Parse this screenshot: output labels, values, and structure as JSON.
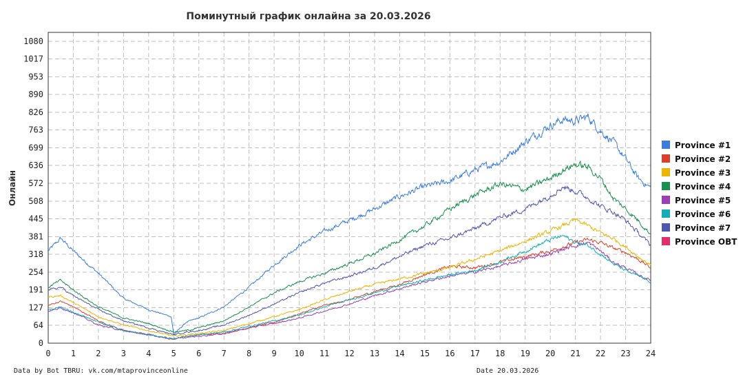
{
  "chart_data": {
    "type": "line",
    "title": "Поминутный график онлайна за 20.03.2026",
    "xlabel": "",
    "ylabel": "Онлайн",
    "xlim": [
      0,
      24
    ],
    "ylim": [
      0,
      1080
    ],
    "x_ticks": [
      "0",
      "1",
      "2",
      "3",
      "4",
      "5",
      "6",
      "7",
      "8",
      "9",
      "10",
      "11",
      "12",
      "13",
      "14",
      "15",
      "16",
      "17",
      "18",
      "19",
      "20",
      "21",
      "22",
      "23",
      "24"
    ],
    "y_ticks": [
      0,
      64,
      127,
      191,
      254,
      318,
      381,
      445,
      508,
      572,
      636,
      699,
      763,
      826,
      890,
      953,
      1017,
      1080
    ],
    "grid": true,
    "legend_position": "right",
    "series": [
      {
        "name": "Province #1",
        "color": "#3b7ddd",
        "x": [
          0,
          0.5,
          1,
          2,
          3,
          4,
          4.9,
          5,
          5.5,
          6,
          7,
          8,
          9,
          10,
          11,
          12,
          13,
          14,
          15,
          16,
          17,
          18,
          19,
          20,
          20.5,
          21,
          21.5,
          22,
          22.5,
          23,
          23.5,
          24
        ],
        "y": [
          330,
          375,
          330,
          250,
          160,
          120,
          95,
          30,
          75,
          90,
          130,
          200,
          280,
          350,
          400,
          440,
          480,
          525,
          560,
          580,
          620,
          650,
          720,
          780,
          800,
          795,
          810,
          760,
          720,
          660,
          590,
          555
        ]
      },
      {
        "name": "Province #2",
        "color": "#d9412a",
        "x": [
          0,
          0.5,
          1,
          2,
          3,
          4,
          5,
          5.5,
          6,
          7,
          8,
          9,
          10,
          11,
          12,
          13,
          14,
          15,
          16,
          17,
          18,
          19,
          20,
          21,
          21.5,
          22,
          22.5,
          23,
          23.5,
          24
        ],
        "y": [
          135,
          150,
          130,
          80,
          45,
          30,
          15,
          25,
          30,
          35,
          55,
          75,
          105,
          135,
          155,
          185,
          210,
          245,
          275,
          270,
          290,
          310,
          330,
          360,
          370,
          360,
          340,
          325,
          300,
          270
        ]
      },
      {
        "name": "Province #3",
        "color": "#f0b400",
        "x": [
          0,
          0.5,
          1,
          2,
          3,
          4,
          5,
          5.5,
          6,
          7,
          8,
          9,
          10,
          11,
          12,
          13,
          14,
          15,
          16,
          17,
          18,
          19,
          20,
          20.5,
          21,
          21.5,
          22,
          22.5,
          23,
          23.5,
          24
        ],
        "y": [
          165,
          170,
          145,
          95,
          65,
          45,
          25,
          30,
          35,
          45,
          70,
          95,
          120,
          155,
          185,
          210,
          230,
          250,
          270,
          300,
          330,
          365,
          400,
          420,
          440,
          420,
          395,
          375,
          345,
          310,
          280
        ]
      },
      {
        "name": "Province #4",
        "color": "#1a8f4f",
        "x": [
          0,
          0.5,
          1,
          2,
          3,
          4,
          5,
          5.5,
          6,
          7,
          8,
          9,
          10,
          11,
          12,
          13,
          14,
          15,
          16,
          17,
          18,
          19,
          20,
          20.5,
          21,
          21.5,
          22,
          22.5,
          23,
          23.5,
          24
        ],
        "y": [
          200,
          225,
          190,
          130,
          90,
          70,
          40,
          45,
          55,
          80,
          130,
          180,
          220,
          250,
          285,
          320,
          370,
          420,
          480,
          530,
          570,
          550,
          590,
          620,
          640,
          630,
          590,
          520,
          480,
          440,
          390
        ]
      },
      {
        "name": "Province #5",
        "color": "#9b3fb5",
        "x": [
          0,
          0.5,
          1,
          2,
          3,
          4,
          5,
          5.5,
          6,
          7,
          8,
          9,
          10,
          11,
          12,
          13,
          14,
          15,
          16,
          17,
          18,
          19,
          20,
          21,
          21.5,
          22,
          22.5,
          23,
          23.5,
          24
        ],
        "y": [
          115,
          125,
          110,
          65,
          45,
          30,
          15,
          20,
          25,
          35,
          55,
          70,
          90,
          115,
          140,
          170,
          195,
          220,
          240,
          255,
          275,
          300,
          320,
          350,
          360,
          330,
          290,
          270,
          245,
          225
        ]
      },
      {
        "name": "Province #6",
        "color": "#12aeb8",
        "x": [
          0,
          0.5,
          1,
          2,
          3,
          4,
          5,
          5.5,
          6,
          7,
          8,
          9,
          10,
          11,
          12,
          13,
          14,
          15,
          16,
          17,
          18,
          19,
          20,
          20.5,
          21,
          21.5,
          22,
          22.5,
          23,
          23.5,
          24
        ],
        "y": [
          120,
          130,
          110,
          75,
          45,
          30,
          15,
          25,
          30,
          40,
          60,
          80,
          100,
          130,
          155,
          180,
          205,
          225,
          245,
          260,
          290,
          330,
          370,
          385,
          360,
          350,
          320,
          285,
          260,
          240,
          220
        ]
      },
      {
        "name": "Province #7",
        "color": "#4f56b0",
        "x": [
          0,
          0.5,
          1,
          2,
          3,
          4,
          5,
          5.5,
          6,
          7,
          8,
          9,
          10,
          11,
          12,
          13,
          14,
          15,
          16,
          17,
          18,
          19,
          20,
          20.5,
          21,
          21.5,
          22,
          22.5,
          23,
          23.5,
          24
        ],
        "y": [
          190,
          200,
          170,
          120,
          80,
          55,
          30,
          40,
          45,
          65,
          100,
          140,
          180,
          215,
          240,
          270,
          310,
          350,
          375,
          410,
          450,
          480,
          530,
          560,
          545,
          520,
          490,
          470,
          440,
          395,
          350
        ]
      },
      {
        "name": "Province OBT",
        "color": "#e0306b",
        "x": [
          0,
          24
        ],
        "y": [
          0,
          0
        ]
      }
    ]
  },
  "footer": {
    "source": "Data by Bot TBRU: vk.com/mtaprovinceonline",
    "date": "Date 20.03.2026"
  }
}
